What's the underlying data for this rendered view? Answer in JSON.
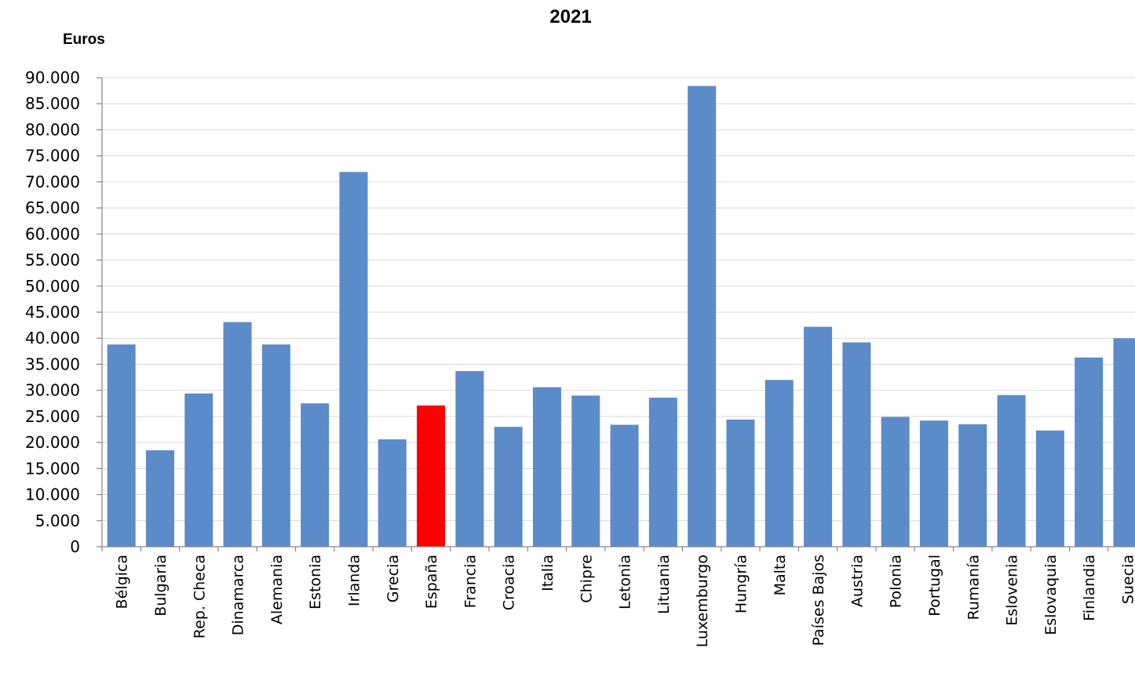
{
  "chart_data": {
    "type": "bar",
    "title": "2021",
    "ylabel": "Euros",
    "xlabel": "",
    "ylim": [
      0,
      90000
    ],
    "ytick_values": [
      0,
      5000,
      10000,
      15000,
      20000,
      25000,
      30000,
      35000,
      40000,
      45000,
      50000,
      55000,
      60000,
      65000,
      70000,
      75000,
      80000,
      85000,
      90000
    ],
    "ytick_labels": [
      "0",
      "5.000",
      "10.000",
      "15.000",
      "20.000",
      "25.000",
      "30.000",
      "35.000",
      "40.000",
      "45.000",
      "50.000",
      "55.000",
      "60.000",
      "65.000",
      "70.000",
      "75.000",
      "80.000",
      "85.000",
      "90.000"
    ],
    "categories": [
      "Bélgica",
      "Bulgaria",
      "Rep. Checa",
      "Dinamarca",
      "Alemania",
      "Estonia",
      "Irlanda",
      "Grecia",
      "España",
      "Francia",
      "Croacia",
      "Italia",
      "Chipre",
      "Letonia",
      "Lituania",
      "Luxemburgo",
      "Hungría",
      "Malta",
      "Países Bajos",
      "Austria",
      "Polonia",
      "Portugal",
      "Rumanía",
      "Eslovenia",
      "Eslovaquia",
      "Finlandia",
      "Suecia"
    ],
    "values": [
      38800,
      18500,
      29400,
      43100,
      38800,
      27500,
      71900,
      20600,
      27100,
      33700,
      23000,
      30600,
      29000,
      23400,
      28600,
      88400,
      24400,
      32000,
      42200,
      39200,
      24900,
      24200,
      23500,
      29100,
      22300,
      36300,
      40000
    ],
    "highlight_category": "España",
    "colors": {
      "bar": "#5b8bc9",
      "highlight": "#ff0000",
      "grid": "#d9d9d9",
      "axis": "#868686"
    },
    "grid": true,
    "legend": "none"
  }
}
